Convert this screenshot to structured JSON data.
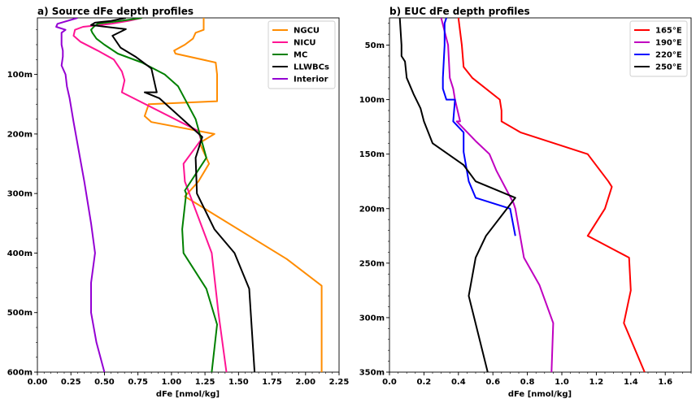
{
  "chart_data": [
    {
      "type": "line",
      "title": "a) Source dFe depth profiles",
      "xlabel": "dFe [nmol/kg]",
      "ylabel": "",
      "xlim": [
        0,
        2.25
      ],
      "ylim": [
        600,
        5
      ],
      "y_inverted": true,
      "xticks": [
        0,
        0.25,
        0.5,
        0.75,
        1.0,
        1.25,
        1.5,
        1.75,
        2.0,
        2.25
      ],
      "xtick_labels": [
        "0.00",
        "0.25",
        "0.50",
        "0.75",
        "1.00",
        "1.25",
        "1.50",
        "1.75",
        "2.00",
        "2.25"
      ],
      "yticks": [
        100,
        200,
        300,
        400,
        500,
        600
      ],
      "ytick_labels": [
        "100m",
        "200m",
        "300m",
        "400m",
        "500m",
        "600m"
      ],
      "legend_position": "top-right",
      "series": [
        {
          "name": "NGCU",
          "color": "#ff8c00",
          "x": [
            1.24,
            1.24,
            1.18,
            1.16,
            1.1,
            1.02,
            1.03,
            1.33,
            1.34,
            1.34,
            0.83,
            0.8,
            0.85,
            1.32,
            1.21,
            1.28,
            1.2,
            1.1,
            1.86,
            2.12,
            2.12,
            2.12
          ],
          "y": [
            5,
            25,
            30,
            40,
            50,
            60,
            65,
            80,
            100,
            145,
            150,
            170,
            180,
            200,
            215,
            250,
            280,
            305,
            410,
            455,
            500,
            600
          ]
        },
        {
          "name": "NICU",
          "color": "#ff1493",
          "x": [
            0.78,
            0.68,
            0.55,
            0.34,
            0.28,
            0.27,
            0.32,
            0.45,
            0.57,
            0.63,
            0.65,
            0.63,
            1.2,
            1.22,
            1.09,
            1.1,
            1.3,
            1.35,
            1.41
          ],
          "y": [
            5,
            10,
            15,
            20,
            25,
            35,
            45,
            60,
            75,
            95,
            110,
            130,
            195,
            210,
            250,
            280,
            400,
            500,
            600
          ]
        },
        {
          "name": "MC",
          "color": "#008000",
          "x": [
            0.78,
            0.62,
            0.45,
            0.42,
            0.4,
            0.41,
            0.44,
            0.5,
            0.6,
            0.78,
            0.95,
            1.05,
            1.18,
            1.26,
            1.1,
            1.11,
            1.08,
            1.09,
            1.26,
            1.34,
            1.3
          ],
          "y": [
            5,
            10,
            15,
            20,
            25,
            30,
            40,
            50,
            65,
            80,
            100,
            120,
            175,
            240,
            295,
            300,
            360,
            400,
            460,
            520,
            600
          ]
        },
        {
          "name": "LLWBCs",
          "color": "#000000",
          "x": [
            0.66,
            0.55,
            0.43,
            0.4,
            0.66,
            0.56,
            0.62,
            0.73,
            0.85,
            0.88,
            0.89,
            0.8,
            0.91,
            1.23,
            1.18,
            1.19,
            1.32,
            1.47,
            1.58,
            1.6,
            1.62
          ],
          "y": [
            5,
            10,
            13,
            17,
            24,
            35,
            55,
            70,
            90,
            120,
            130,
            130,
            140,
            205,
            240,
            300,
            360,
            400,
            460,
            530,
            600
          ]
        },
        {
          "name": "Interior",
          "color": "#9400d3",
          "x": [
            0.3,
            0.15,
            0.14,
            0.21,
            0.18,
            0.18,
            0.18,
            0.19,
            0.19,
            0.18,
            0.21,
            0.22,
            0.24,
            0.27,
            0.31,
            0.35,
            0.4,
            0.43,
            0.4,
            0.4,
            0.44,
            0.5
          ],
          "y": [
            5,
            15,
            20,
            25,
            30,
            40,
            50,
            60,
            70,
            85,
            100,
            120,
            140,
            180,
            230,
            280,
            350,
            400,
            450,
            500,
            550,
            600
          ]
        }
      ]
    },
    {
      "type": "line",
      "title": "b) EUC dFe depth profiles",
      "xlabel": "dFe [nmol/kg]",
      "ylabel": "",
      "xlim": [
        0,
        1.75
      ],
      "ylim": [
        350,
        25
      ],
      "y_inverted": true,
      "xticks": [
        0,
        0.2,
        0.4,
        0.6,
        0.8,
        1.0,
        1.2,
        1.4,
        1.6
      ],
      "xtick_labels": [
        "0.0",
        "0.2",
        "0.4",
        "0.6",
        "0.8",
        "1.0",
        "1.2",
        "1.4",
        "1.6"
      ],
      "yticks": [
        50,
        100,
        150,
        200,
        250,
        300,
        350
      ],
      "ytick_labels": [
        "50m",
        "100m",
        "150m",
        "200m",
        "250m",
        "300m",
        "350m"
      ],
      "legend_position": "top-right",
      "series": [
        {
          "name": "165°E",
          "color": "#ff0000",
          "x": [
            0.4,
            0.42,
            0.43,
            0.48,
            0.64,
            0.65,
            0.65,
            0.76,
            1.15,
            1.27,
            1.29,
            1.25,
            1.15,
            1.39,
            1.4,
            1.36,
            1.48
          ],
          "y": [
            25,
            50,
            70,
            80,
            100,
            110,
            120,
            130,
            150,
            175,
            180,
            200,
            225,
            245,
            275,
            305,
            350
          ]
        },
        {
          "name": "190°E",
          "color": "#c000c0",
          "x": [
            0.3,
            0.34,
            0.35,
            0.37,
            0.38,
            0.41,
            0.39,
            0.5,
            0.58,
            0.62,
            0.72,
            0.73,
            0.78,
            0.87,
            0.95,
            0.94
          ],
          "y": [
            25,
            50,
            80,
            90,
            100,
            120,
            120,
            138,
            150,
            165,
            195,
            200,
            245,
            270,
            305,
            350
          ]
        },
        {
          "name": "220°E",
          "color": "#0000ff",
          "x": [
            0.33,
            0.32,
            0.32,
            0.31,
            0.31,
            0.33,
            0.38,
            0.37,
            0.43,
            0.43,
            0.46,
            0.5,
            0.7,
            0.73
          ],
          "y": [
            25,
            30,
            50,
            80,
            90,
            100,
            100,
            120,
            130,
            148,
            175,
            190,
            200,
            225
          ]
        },
        {
          "name": "250°E",
          "color": "#000000",
          "x": [
            0.06,
            0.07,
            0.07,
            0.09,
            0.1,
            0.14,
            0.18,
            0.2,
            0.25,
            0.43,
            0.5,
            0.73,
            0.56,
            0.5,
            0.46,
            0.57
          ],
          "y": [
            25,
            50,
            60,
            65,
            80,
            95,
            108,
            120,
            140,
            160,
            175,
            190,
            225,
            245,
            280,
            350
          ]
        }
      ]
    }
  ]
}
